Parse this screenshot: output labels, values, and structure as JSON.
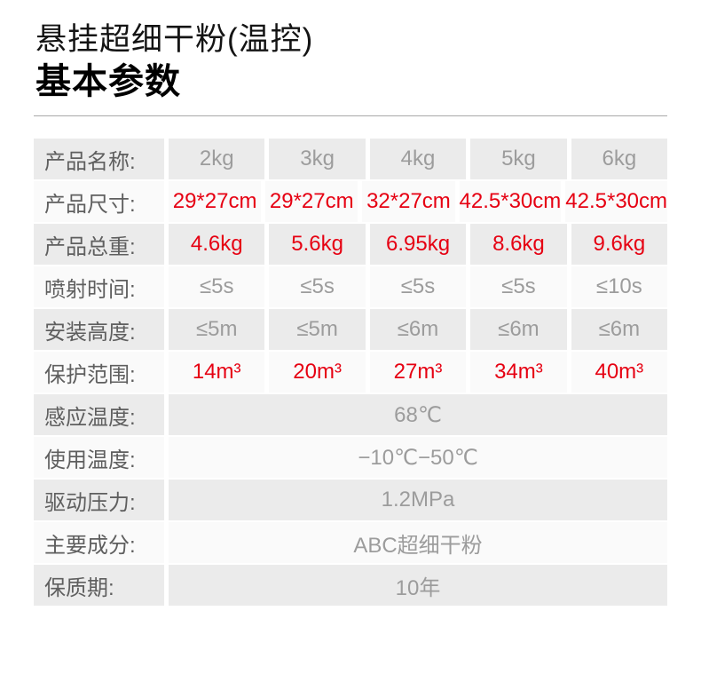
{
  "page": {
    "title": "悬挂超细干粉(温控)",
    "section_heading": "基本参数"
  },
  "colors": {
    "accent_red": "#e60012",
    "row_odd_bg": "#ebebeb",
    "row_even_bg": "#fafafa",
    "label_text": "#5f5f5f",
    "value_text": "#9c9c9c",
    "divider": "#a8a8a8"
  },
  "table": {
    "rows": [
      {
        "label": "产品名称:",
        "values": [
          "2kg",
          "3kg",
          "4kg",
          "5kg",
          "6kg"
        ],
        "value_color": "gray"
      },
      {
        "label": "产品尺寸:",
        "values": [
          "29*27cm",
          "29*27cm",
          "32*27cm",
          "42.5*30cm",
          "42.5*30cm"
        ],
        "value_color": "red"
      },
      {
        "label": "产品总重:",
        "values": [
          "4.6kg",
          "5.6kg",
          "6.95kg",
          "8.6kg",
          "9.6kg"
        ],
        "value_color": "red"
      },
      {
        "label": "喷射时间:",
        "values": [
          "≤5s",
          "≤5s",
          "≤5s",
          "≤5s",
          "≤10s"
        ],
        "value_color": "gray"
      },
      {
        "label": "安装高度:",
        "values": [
          "≤5m",
          "≤5m",
          "≤6m",
          "≤6m",
          "≤6m"
        ],
        "value_color": "gray"
      },
      {
        "label": "保护范围:",
        "values": [
          "14m³",
          "20m³",
          "27m³",
          "34m³",
          "40m³"
        ],
        "value_color": "red"
      },
      {
        "label": "感应温度:",
        "merged_value": "68℃",
        "value_color": "gray"
      },
      {
        "label": "使用温度:",
        "merged_value": "−10℃−50℃",
        "value_color": "gray"
      },
      {
        "label": "驱动压力:",
        "merged_value": "1.2MPa",
        "value_color": "gray"
      },
      {
        "label": "主要成分:",
        "merged_value": "ABC超细干粉",
        "value_color": "gray"
      },
      {
        "label": "保质期:",
        "merged_value": "10年",
        "value_color": "gray"
      }
    ]
  }
}
